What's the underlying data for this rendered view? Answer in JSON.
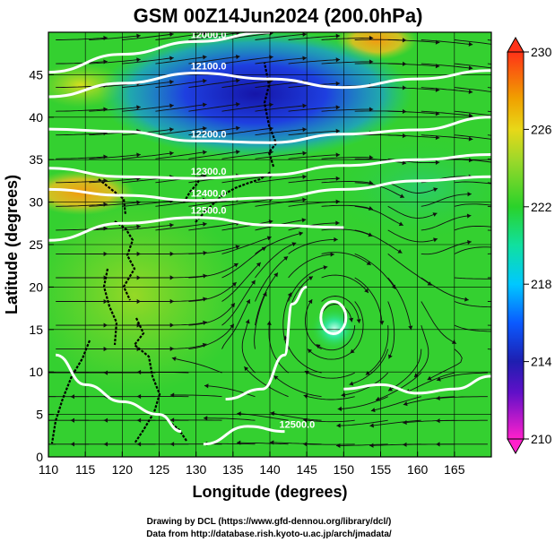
{
  "chart_data": {
    "type": "heatmap",
    "title": "GSM 00Z14Jun2024 (200.0hPa)",
    "xlabel": "Longitude (degrees)",
    "ylabel": "Latitude  (degrees)",
    "xlim": [
      110,
      170
    ],
    "ylim": [
      0,
      50
    ],
    "x_ticks": [
      "110",
      "115",
      "120",
      "125",
      "130",
      "135",
      "140",
      "145",
      "150",
      "155",
      "160",
      "165"
    ],
    "y_ticks": [
      "0",
      "5",
      "10",
      "15",
      "20",
      "25",
      "30",
      "35",
      "40",
      "45"
    ],
    "colorbar": {
      "min": 210,
      "max": 230,
      "ticks": [
        "210",
        "214",
        "218",
        "222",
        "226",
        "230"
      ],
      "colors": [
        "#ff00cc",
        "#1e1eb0",
        "#0a5aff",
        "#00c0ff",
        "#18e0a0",
        "#2ad22a",
        "#9cd82a",
        "#f0a000",
        "#ff3c1e"
      ]
    },
    "grid": true,
    "contours": [
      {
        "label": "12000.0",
        "points": [
          [
            110,
            45.3
          ],
          [
            120,
            47.4
          ],
          [
            130,
            48.9
          ],
          [
            140,
            50
          ]
        ]
      },
      {
        "label": "12100.0",
        "points": [
          [
            110,
            42.4
          ],
          [
            120,
            44.0
          ],
          [
            130,
            45.2
          ],
          [
            140,
            44.5
          ],
          [
            150,
            43.5
          ],
          [
            160,
            44.5
          ],
          [
            170,
            45.5
          ]
        ]
      },
      {
        "label": "12200.0",
        "points": [
          [
            110,
            38.6
          ],
          [
            120,
            38.3
          ],
          [
            130,
            37.2
          ],
          [
            140,
            37.0
          ],
          [
            150,
            38.0
          ],
          [
            160,
            38.5
          ],
          [
            170,
            40.0
          ]
        ]
      },
      {
        "label": "12300.0",
        "points": [
          [
            110,
            34.0
          ],
          [
            120,
            33.0
          ],
          [
            130,
            32.8
          ],
          [
            140,
            33.2
          ],
          [
            150,
            34.3
          ],
          [
            160,
            35.0
          ],
          [
            170,
            35.6
          ]
        ]
      },
      {
        "label": "12400.0",
        "points": [
          [
            110,
            31.5
          ],
          [
            120,
            30.8
          ],
          [
            130,
            30.2
          ],
          [
            140,
            30.5
          ],
          [
            150,
            31.5
          ],
          [
            160,
            32.5
          ],
          [
            170,
            33.0
          ]
        ]
      },
      {
        "label": "12500.0",
        "points": [
          [
            110,
            25.5
          ],
          [
            120,
            27.5
          ],
          [
            130,
            28.2
          ],
          [
            140,
            27.3
          ],
          [
            150,
            27.0
          ]
        ]
      },
      {
        "label": "",
        "points": [
          [
            150,
            8.0
          ],
          [
            155,
            8.5
          ],
          [
            160,
            7.5
          ],
          [
            165,
            8.0
          ],
          [
            170,
            9.5
          ]
        ]
      },
      {
        "label": "",
        "points": [
          [
            111,
            12
          ],
          [
            115,
            8.5
          ],
          [
            120,
            6.5
          ],
          [
            125,
            5.0
          ],
          [
            128,
            3.0
          ]
        ]
      },
      {
        "label": "",
        "points": [
          [
            134,
            6.8
          ],
          [
            139,
            8.0
          ],
          [
            142,
            12.0
          ],
          [
            143,
            18.0
          ],
          [
            145,
            20.0
          ]
        ]
      },
      {
        "label": "12500.0",
        "points": [
          [
            131,
            1.5
          ],
          [
            137,
            3.6
          ],
          [
            142,
            3.0
          ]
        ]
      }
    ],
    "features": [
      {
        "name": "anticyclone-center",
        "lon": 148.6,
        "lat": 16.4
      },
      {
        "name": "cyclone-center",
        "lon": 159.5,
        "lat": 29.0
      }
    ]
  },
  "credits": {
    "line1": "Drawing by DCL (https://www.gfd-dennou.org/library/dcl/)",
    "line2": "Data from http://database.rish.kyoto-u.ac.jp/arch/jmadata/"
  }
}
